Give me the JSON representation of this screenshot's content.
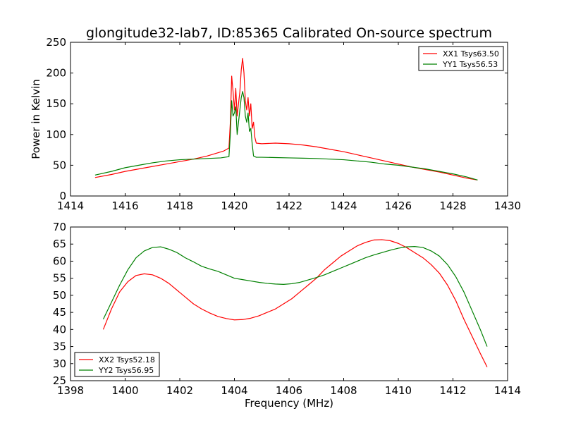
{
  "chart_data": [
    {
      "type": "line",
      "title": "glongitude32-lab7, ID:85365 Calibrated On-source spectrum",
      "xlabel": "",
      "ylabel": "Power in Kelvin",
      "xlim": [
        1414,
        1430
      ],
      "ylim": [
        0,
        250
      ],
      "xticks": [
        1414,
        1416,
        1418,
        1420,
        1422,
        1424,
        1426,
        1428,
        1430
      ],
      "yticks": [
        0,
        50,
        100,
        150,
        200,
        250
      ],
      "legend_position": "top-right",
      "series": [
        {
          "name": "XX1 Tsys63.50",
          "color": "#ff0000",
          "points": [
            [
              1414.9,
              30
            ],
            [
              1415.5,
              35
            ],
            [
              1416.0,
              40
            ],
            [
              1416.5,
              44
            ],
            [
              1417.0,
              48
            ],
            [
              1417.5,
              52
            ],
            [
              1418.0,
              56
            ],
            [
              1418.5,
              60
            ],
            [
              1419.0,
              65
            ],
            [
              1419.3,
              69
            ],
            [
              1419.6,
              73
            ],
            [
              1419.8,
              78
            ],
            [
              1419.85,
              120
            ],
            [
              1419.9,
              195
            ],
            [
              1419.95,
              170
            ],
            [
              1420.0,
              140
            ],
            [
              1420.05,
              175
            ],
            [
              1420.1,
              130
            ],
            [
              1420.15,
              150
            ],
            [
              1420.2,
              170
            ],
            [
              1420.25,
              205
            ],
            [
              1420.3,
              224
            ],
            [
              1420.35,
              200
            ],
            [
              1420.4,
              155
            ],
            [
              1420.45,
              140
            ],
            [
              1420.5,
              160
            ],
            [
              1420.55,
              130
            ],
            [
              1420.6,
              150
            ],
            [
              1420.65,
              110
            ],
            [
              1420.7,
              120
            ],
            [
              1420.75,
              95
            ],
            [
              1420.8,
              86
            ],
            [
              1421.0,
              85
            ],
            [
              1421.5,
              86
            ],
            [
              1422.0,
              85
            ],
            [
              1422.5,
              83
            ],
            [
              1423.0,
              80
            ],
            [
              1423.5,
              76
            ],
            [
              1424.0,
              72
            ],
            [
              1424.5,
              67
            ],
            [
              1425.0,
              62
            ],
            [
              1425.5,
              57
            ],
            [
              1426.0,
              52
            ],
            [
              1426.5,
              47
            ],
            [
              1427.0,
              43
            ],
            [
              1427.5,
              39
            ],
            [
              1428.0,
              34
            ],
            [
              1428.5,
              29
            ],
            [
              1428.9,
              26
            ]
          ]
        },
        {
          "name": "YY1 Tsys56.53",
          "color": "#008000",
          "points": [
            [
              1414.9,
              34
            ],
            [
              1415.5,
              40
            ],
            [
              1416.0,
              46
            ],
            [
              1416.5,
              50
            ],
            [
              1417.0,
              54
            ],
            [
              1417.5,
              57
            ],
            [
              1418.0,
              59
            ],
            [
              1418.5,
              60
            ],
            [
              1419.0,
              61
            ],
            [
              1419.5,
              62
            ],
            [
              1419.8,
              64
            ],
            [
              1419.85,
              100
            ],
            [
              1419.9,
              155
            ],
            [
              1419.95,
              130
            ],
            [
              1420.0,
              135
            ],
            [
              1420.05,
              145
            ],
            [
              1420.1,
              100
            ],
            [
              1420.15,
              120
            ],
            [
              1420.2,
              140
            ],
            [
              1420.25,
              160
            ],
            [
              1420.3,
              170
            ],
            [
              1420.35,
              160
            ],
            [
              1420.4,
              130
            ],
            [
              1420.45,
              120
            ],
            [
              1420.5,
              135
            ],
            [
              1420.55,
              105
            ],
            [
              1420.6,
              110
            ],
            [
              1420.65,
              85
            ],
            [
              1420.7,
              65
            ],
            [
              1420.8,
              63
            ],
            [
              1421.0,
              63
            ],
            [
              1421.5,
              62.5
            ],
            [
              1422.0,
              62
            ],
            [
              1422.5,
              61.5
            ],
            [
              1423.0,
              61
            ],
            [
              1423.5,
              60
            ],
            [
              1424.0,
              59
            ],
            [
              1424.5,
              57
            ],
            [
              1425.0,
              55
            ],
            [
              1425.5,
              52
            ],
            [
              1426.0,
              50
            ],
            [
              1426.5,
              47
            ],
            [
              1427.0,
              44
            ],
            [
              1427.5,
              40
            ],
            [
              1428.0,
              36
            ],
            [
              1428.5,
              31
            ],
            [
              1428.9,
              26
            ]
          ]
        }
      ]
    },
    {
      "type": "line",
      "title": "",
      "xlabel": "Frequency (MHz)",
      "ylabel": "",
      "xlim": [
        1398,
        1414
      ],
      "ylim": [
        25,
        70
      ],
      "xticks": [
        1398,
        1400,
        1402,
        1404,
        1406,
        1408,
        1410,
        1412,
        1414
      ],
      "yticks": [
        25,
        30,
        35,
        40,
        45,
        50,
        55,
        60,
        65,
        70
      ],
      "legend_position": "lower-left",
      "series": [
        {
          "name": "XX2 Tsys52.18",
          "color": "#ff0000",
          "points": [
            [
              1399.2,
              40
            ],
            [
              1399.5,
              46
            ],
            [
              1399.8,
              51
            ],
            [
              1400.1,
              54
            ],
            [
              1400.4,
              55.8
            ],
            [
              1400.7,
              56.3
            ],
            [
              1401.0,
              56
            ],
            [
              1401.3,
              55
            ],
            [
              1401.6,
              53.5
            ],
            [
              1401.9,
              51.5
            ],
            [
              1402.2,
              49.5
            ],
            [
              1402.5,
              47.5
            ],
            [
              1402.8,
              46
            ],
            [
              1403.1,
              44.8
            ],
            [
              1403.4,
              43.8
            ],
            [
              1403.7,
              43.2
            ],
            [
              1404.0,
              42.8
            ],
            [
              1404.3,
              42.9
            ],
            [
              1404.6,
              43.3
            ],
            [
              1404.9,
              44
            ],
            [
              1405.2,
              45
            ],
            [
              1405.5,
              46
            ],
            [
              1405.8,
              47.5
            ],
            [
              1406.1,
              49
            ],
            [
              1406.4,
              51
            ],
            [
              1406.7,
              53
            ],
            [
              1407.0,
              55
            ],
            [
              1407.3,
              57.5
            ],
            [
              1407.6,
              59.5
            ],
            [
              1407.9,
              61.5
            ],
            [
              1408.2,
              63
            ],
            [
              1408.5,
              64.5
            ],
            [
              1408.8,
              65.5
            ],
            [
              1409.1,
              66.2
            ],
            [
              1409.4,
              66.3
            ],
            [
              1409.7,
              66
            ],
            [
              1410.0,
              65.2
            ],
            [
              1410.3,
              64
            ],
            [
              1410.6,
              62.5
            ],
            [
              1410.9,
              61
            ],
            [
              1411.2,
              59
            ],
            [
              1411.5,
              56.5
            ],
            [
              1411.8,
              53
            ],
            [
              1412.1,
              48.5
            ],
            [
              1412.4,
              43
            ],
            [
              1412.7,
              38
            ],
            [
              1413.0,
              33
            ],
            [
              1413.25,
              29
            ]
          ]
        },
        {
          "name": "YY2 Tsys56.95",
          "color": "#008000",
          "points": [
            [
              1399.2,
              43
            ],
            [
              1399.5,
              48
            ],
            [
              1399.8,
              53
            ],
            [
              1400.1,
              57.5
            ],
            [
              1400.4,
              61
            ],
            [
              1400.7,
              63
            ],
            [
              1401.0,
              64
            ],
            [
              1401.3,
              64.2
            ],
            [
              1401.6,
              63.5
            ],
            [
              1401.9,
              62.5
            ],
            [
              1402.2,
              61
            ],
            [
              1402.5,
              59.8
            ],
            [
              1402.8,
              58.5
            ],
            [
              1403.1,
              57.7
            ],
            [
              1403.4,
              57
            ],
            [
              1403.7,
              56
            ],
            [
              1404.0,
              55
            ],
            [
              1404.3,
              54.6
            ],
            [
              1404.6,
              54.2
            ],
            [
              1404.9,
              53.8
            ],
            [
              1405.2,
              53.5
            ],
            [
              1405.5,
              53.3
            ],
            [
              1405.8,
              53.2
            ],
            [
              1406.1,
              53.4
            ],
            [
              1406.4,
              53.8
            ],
            [
              1406.7,
              54.5
            ],
            [
              1407.0,
              55.2
            ],
            [
              1407.3,
              56
            ],
            [
              1407.6,
              57
            ],
            [
              1407.9,
              58
            ],
            [
              1408.2,
              59
            ],
            [
              1408.5,
              60
            ],
            [
              1408.8,
              61
            ],
            [
              1409.1,
              61.8
            ],
            [
              1409.4,
              62.5
            ],
            [
              1409.7,
              63.2
            ],
            [
              1410.0,
              63.8
            ],
            [
              1410.3,
              64.2
            ],
            [
              1410.6,
              64.3
            ],
            [
              1410.9,
              64
            ],
            [
              1411.2,
              63
            ],
            [
              1411.5,
              61.5
            ],
            [
              1411.8,
              59
            ],
            [
              1412.1,
              55.5
            ],
            [
              1412.4,
              51
            ],
            [
              1412.7,
              45.5
            ],
            [
              1413.0,
              40
            ],
            [
              1413.25,
              35
            ]
          ]
        }
      ]
    }
  ]
}
